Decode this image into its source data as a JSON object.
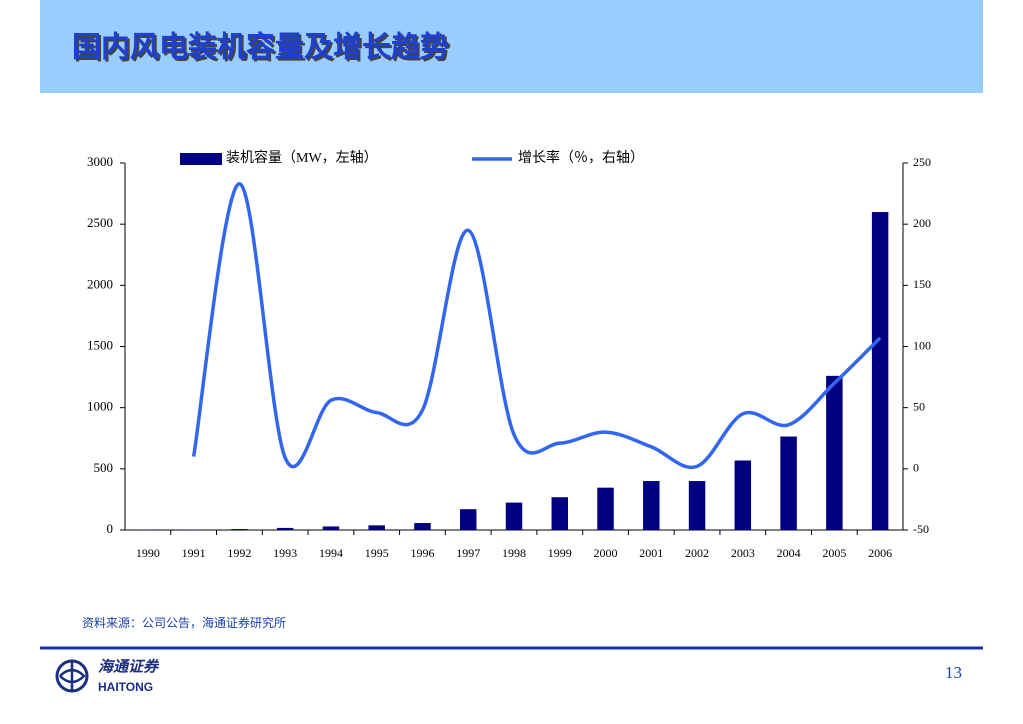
{
  "header": {
    "title": "国内风电装机容量及增长趋势"
  },
  "chart_data": {
    "type": "bar",
    "categories": [
      "1990",
      "1991",
      "1992",
      "1993",
      "1994",
      "1995",
      "1996",
      "1997",
      "1998",
      "1999",
      "2000",
      "2001",
      "2002",
      "2003",
      "2004",
      "2005",
      "2006"
    ],
    "series": [
      {
        "name": "装机容量（MW，左轴）",
        "type": "bar",
        "color": "#000080",
        "values": [
          4,
          4,
          8,
          17,
          29,
          38,
          57,
          170,
          224,
          268,
          346,
          400,
          400,
          568,
          764,
          1260,
          2599
        ]
      },
      {
        "name": "增长率（％，右轴）",
        "type": "line",
        "axis": "y2",
        "color": "#3366ee",
        "smooth": true,
        "values": [
          null,
          10,
          233,
          9,
          56,
          46,
          48,
          195,
          28,
          21,
          30,
          18,
          2,
          45,
          36,
          70,
          107
        ]
      }
    ],
    "ylim": [
      0,
      3000
    ],
    "yticks": [
      0,
      500,
      1000,
      1500,
      2000,
      2500,
      3000
    ],
    "y2lim": [
      -50,
      250
    ],
    "y2ticks": [
      -50,
      0,
      50,
      100,
      150,
      200,
      250
    ],
    "legend": "top"
  },
  "footer": {
    "source": "资料来源：公司公告，海通证券研究所",
    "logo_cn": "海通证券",
    "logo_en": "HAITONG",
    "page_number": "13"
  }
}
